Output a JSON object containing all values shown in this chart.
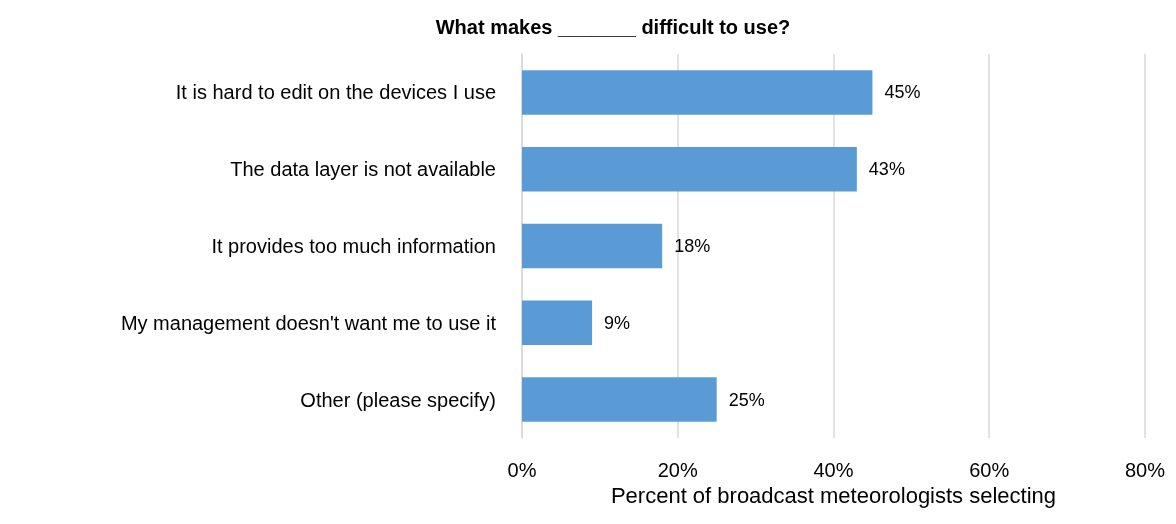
{
  "chart_data": {
    "type": "bar",
    "orientation": "horizontal",
    "title": "What makes _______ difficult to use?",
    "xlabel": "Percent of broadcast meteorologists selecting",
    "categories": [
      "It is hard to edit on the devices I use",
      "The data layer is not available",
      "It provides too much information",
      "My management doesn't want me to use it",
      "Other (please specify)"
    ],
    "values": [
      45,
      43,
      18,
      9,
      25
    ],
    "value_labels": [
      "45%",
      "43%",
      "18%",
      "9%",
      "25%"
    ],
    "color": "#5b9bd5",
    "xlim": [
      0,
      80
    ],
    "xticks": [
      {
        "value": 0,
        "label": "0%"
      },
      {
        "value": 20,
        "label": "20%"
      },
      {
        "value": 40,
        "label": "40%"
      },
      {
        "value": 60,
        "label": "60%"
      },
      {
        "value": 80,
        "label": "80%"
      }
    ],
    "grid": "x"
  }
}
